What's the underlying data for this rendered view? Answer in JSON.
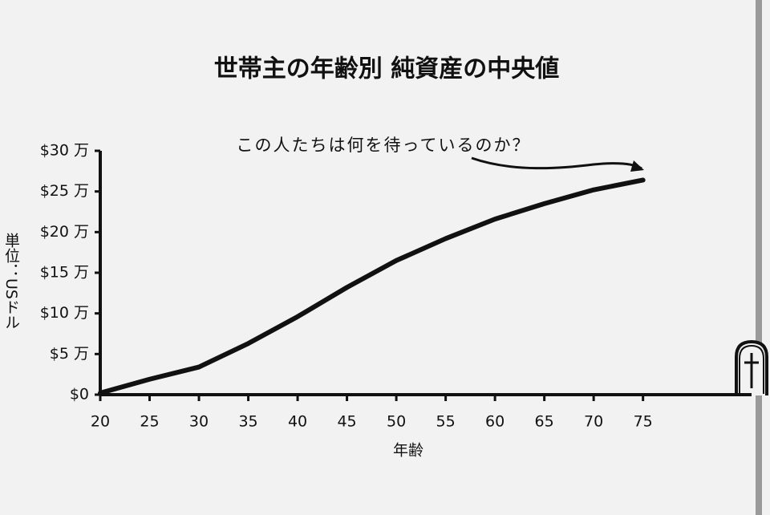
{
  "chart_data": {
    "type": "line",
    "title": "世帯主の年齢別 純資産の中央値",
    "annotation": "この人たちは何を待っているのか？",
    "x_label": "年齢",
    "y_label": "単位：USドル",
    "x": [
      20,
      25,
      30,
      35,
      40,
      45,
      50,
      55,
      60,
      65,
      70,
      75
    ],
    "series": [
      {
        "name": "純資産の中央値",
        "color": "#111111",
        "values": [
          0.2,
          1.9,
          3.4,
          6.3,
          9.6,
          13.2,
          16.5,
          19.2,
          21.6,
          23.5,
          25.2,
          26.4
        ]
      }
    ],
    "xlim": [
      20,
      86
    ],
    "xticks": [
      20,
      25,
      30,
      35,
      40,
      45,
      50,
      55,
      60,
      65,
      70,
      75
    ],
    "ylim": [
      0,
      30
    ],
    "yticks": [
      {
        "value": 0,
        "label": "$0"
      },
      {
        "value": 5,
        "label": "$5 万"
      },
      {
        "value": 10,
        "label": "$10 万"
      },
      {
        "value": 15,
        "label": "$15 万"
      },
      {
        "value": 20,
        "label": "$20 万"
      },
      {
        "value": 25,
        "label": "$25 万"
      },
      {
        "value": 30,
        "label": "$30 万"
      }
    ],
    "grid": false
  }
}
